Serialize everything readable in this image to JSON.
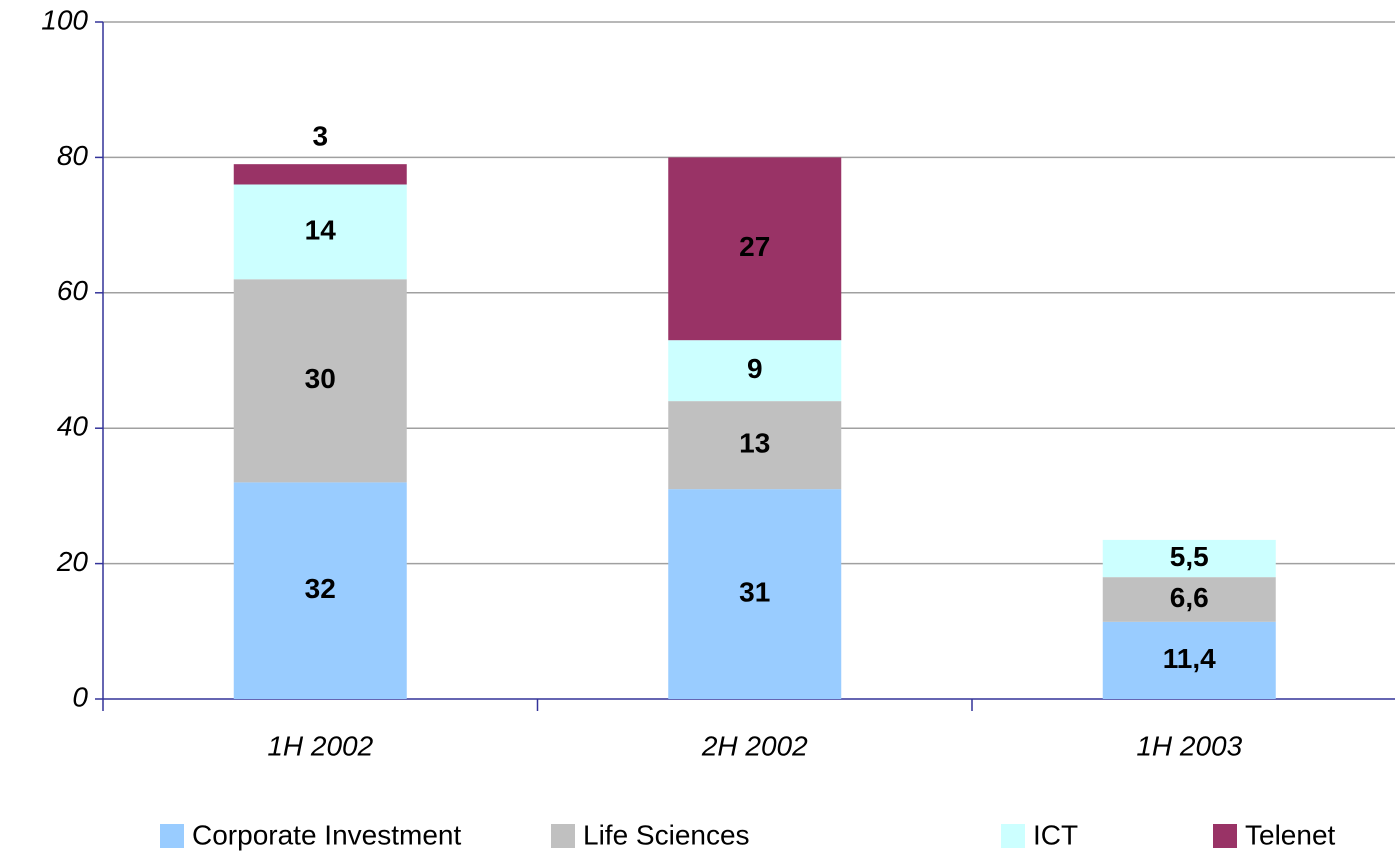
{
  "chart_data": {
    "type": "stacked_bar",
    "categories": [
      "1H 2002",
      "2H 2002",
      "1H 2003"
    ],
    "series": [
      {
        "name": "Corporate Investment",
        "color": "#99ccff",
        "values": [
          32,
          31,
          11.4
        ],
        "value_labels": [
          "32",
          "31",
          "11,4"
        ]
      },
      {
        "name": "Life Sciences",
        "color": "#c0c0c0",
        "values": [
          30,
          13,
          6.6
        ],
        "value_labels": [
          "30",
          "13",
          "6,6"
        ]
      },
      {
        "name": "ICT",
        "color": "#ccffff",
        "values": [
          14,
          9,
          5.5
        ],
        "value_labels": [
          "14",
          "9",
          "5,5"
        ]
      },
      {
        "name": "Telenet",
        "color": "#993366",
        "values": [
          3,
          27,
          null
        ]
      }
    ],
    "ylim": [
      0,
      100
    ],
    "yticks": [
      0,
      20,
      40,
      60,
      80,
      100
    ],
    "grid": true,
    "legend": "bottom"
  }
}
